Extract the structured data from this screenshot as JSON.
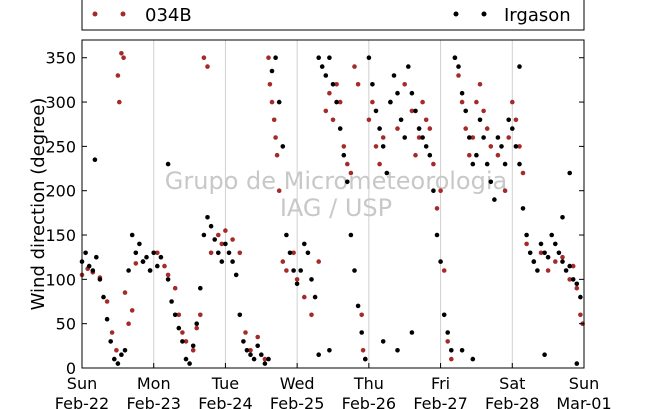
{
  "chart_data": {
    "type": "scatter",
    "title": "",
    "xlabel": "",
    "ylabel": "Wind direction (degree)",
    "ylim": [
      0,
      370
    ],
    "yticks": [
      0,
      50,
      100,
      150,
      200,
      250,
      300,
      350
    ],
    "xlim": [
      "2015-02-22 00:00",
      "2015-03-01 00:00"
    ],
    "xticks": [
      {
        "day": "Sun",
        "date": "Feb-22"
      },
      {
        "day": "Mon",
        "date": "Feb-23"
      },
      {
        "day": "Tue",
        "date": "Feb-24"
      },
      {
        "day": "Wed",
        "date": "Feb-25"
      },
      {
        "day": "Thu",
        "date": "Feb-26"
      },
      {
        "day": "Fri",
        "date": "Feb-27"
      },
      {
        "day": "Sat",
        "date": "Feb-28"
      },
      {
        "day": "Sun",
        "date": "Mar-01"
      }
    ],
    "grid": "vertical",
    "legend_position": "top",
    "watermark": [
      "Grupo de Micrometeorologia",
      "IAG / USP"
    ],
    "series": [
      {
        "name": "034B",
        "color": "#a52a2a",
        "points": [
          [
            0.0,
            105
          ],
          [
            0.08,
            112
          ],
          [
            0.15,
            108
          ],
          [
            0.25,
            102
          ],
          [
            0.35,
            75
          ],
          [
            0.42,
            40
          ],
          [
            0.48,
            20
          ],
          [
            0.5,
            330
          ],
          [
            0.52,
            300
          ],
          [
            0.55,
            355
          ],
          [
            0.58,
            350
          ],
          [
            0.6,
            85
          ],
          [
            0.65,
            50
          ],
          [
            0.7,
            65
          ],
          [
            0.75,
            118
          ],
          [
            0.85,
            120
          ],
          [
            0.95,
            110
          ],
          [
            1.05,
            130
          ],
          [
            1.15,
            115
          ],
          [
            1.2,
            105
          ],
          [
            1.3,
            90
          ],
          [
            1.35,
            60
          ],
          [
            1.4,
            40
          ],
          [
            1.45,
            30
          ],
          [
            1.55,
            20
          ],
          [
            1.6,
            45
          ],
          [
            1.65,
            60
          ],
          [
            1.7,
            350
          ],
          [
            1.75,
            340
          ],
          [
            1.8,
            130
          ],
          [
            1.9,
            150
          ],
          [
            1.95,
            140
          ],
          [
            2.0,
            155
          ],
          [
            2.1,
            145
          ],
          [
            2.2,
            130
          ],
          [
            2.28,
            40
          ],
          [
            2.35,
            20
          ],
          [
            2.45,
            35
          ],
          [
            2.55,
            10
          ],
          [
            2.6,
            350
          ],
          [
            2.62,
            320
          ],
          [
            2.65,
            300
          ],
          [
            2.68,
            280
          ],
          [
            2.7,
            260
          ],
          [
            2.72,
            240
          ],
          [
            2.75,
            200
          ],
          [
            2.8,
            120
          ],
          [
            2.85,
            110
          ],
          [
            2.95,
            130
          ],
          [
            3.0,
            100
          ],
          [
            3.1,
            80
          ],
          [
            3.2,
            60
          ],
          [
            3.3,
            120
          ],
          [
            3.4,
            290
          ],
          [
            3.45,
            310
          ],
          [
            3.5,
            280
          ],
          [
            3.55,
            320
          ],
          [
            3.6,
            300
          ],
          [
            3.65,
            250
          ],
          [
            3.7,
            230
          ],
          [
            3.75,
            220
          ],
          [
            3.8,
            340
          ],
          [
            3.85,
            320
          ],
          [
            3.9,
            60
          ],
          [
            3.92,
            20
          ],
          [
            3.95,
            10
          ],
          [
            4.0,
            280
          ],
          [
            4.05,
            300
          ],
          [
            4.1,
            250
          ],
          [
            4.15,
            230
          ],
          [
            4.2,
            260
          ],
          [
            4.3,
            300
          ],
          [
            4.4,
            270
          ],
          [
            4.5,
            320
          ],
          [
            4.6,
            290
          ],
          [
            4.65,
            240
          ],
          [
            4.7,
            260
          ],
          [
            4.75,
            300
          ],
          [
            4.8,
            280
          ],
          [
            4.85,
            270
          ],
          [
            4.9,
            230
          ],
          [
            4.95,
            180
          ],
          [
            5.0,
            200
          ],
          [
            5.05,
            110
          ],
          [
            5.1,
            30
          ],
          [
            5.15,
            10
          ],
          [
            5.2,
            350
          ],
          [
            5.25,
            330
          ],
          [
            5.3,
            300
          ],
          [
            5.35,
            270
          ],
          [
            5.4,
            240
          ],
          [
            5.45,
            260
          ],
          [
            5.5,
            300
          ],
          [
            5.55,
            320
          ],
          [
            5.6,
            290
          ],
          [
            5.65,
            270
          ],
          [
            5.7,
            250
          ],
          [
            5.8,
            240
          ],
          [
            5.9,
            200
          ],
          [
            5.95,
            260
          ],
          [
            6.0,
            300
          ],
          [
            6.05,
            280
          ],
          [
            6.1,
            250
          ],
          [
            6.15,
            220
          ],
          [
            6.2,
            140
          ],
          [
            6.3,
            120
          ],
          [
            6.4,
            130
          ],
          [
            6.5,
            110
          ],
          [
            6.6,
            120
          ],
          [
            6.7,
            125
          ],
          [
            6.8,
            100
          ],
          [
            6.85,
            115
          ],
          [
            6.9,
            90
          ],
          [
            6.95,
            60
          ],
          [
            6.98,
            50
          ]
        ]
      },
      {
        "name": "Irgason",
        "color": "#000000",
        "points": [
          [
            0.0,
            120
          ],
          [
            0.05,
            130
          ],
          [
            0.1,
            115
          ],
          [
            0.15,
            110
          ],
          [
            0.2,
            125
          ],
          [
            0.25,
            100
          ],
          [
            0.3,
            80
          ],
          [
            0.35,
            55
          ],
          [
            0.4,
            30
          ],
          [
            0.45,
            10
          ],
          [
            0.5,
            5
          ],
          [
            0.55,
            15
          ],
          [
            0.6,
            20
          ],
          [
            0.65,
            110
          ],
          [
            0.7,
            150
          ],
          [
            0.75,
            130
          ],
          [
            0.8,
            140
          ],
          [
            0.85,
            120
          ],
          [
            0.9,
            125
          ],
          [
            0.95,
            110
          ],
          [
            0.18,
            235
          ],
          [
            1.0,
            130
          ],
          [
            1.05,
            115
          ],
          [
            1.1,
            125
          ],
          [
            1.2,
            100
          ],
          [
            1.25,
            75
          ],
          [
            1.3,
            60
          ],
          [
            1.35,
            45
          ],
          [
            1.4,
            30
          ],
          [
            1.45,
            10
          ],
          [
            1.5,
            5
          ],
          [
            1.55,
            25
          ],
          [
            1.6,
            50
          ],
          [
            1.65,
            90
          ],
          [
            1.7,
            150
          ],
          [
            1.75,
            170
          ],
          [
            1.8,
            160
          ],
          [
            1.85,
            145
          ],
          [
            1.9,
            130
          ],
          [
            1.95,
            120
          ],
          [
            1.2,
            230
          ],
          [
            2.0,
            140
          ],
          [
            2.05,
            130
          ],
          [
            2.1,
            120
          ],
          [
            2.15,
            105
          ],
          [
            2.2,
            60
          ],
          [
            2.25,
            30
          ],
          [
            2.3,
            20
          ],
          [
            2.35,
            15
          ],
          [
            2.4,
            10
          ],
          [
            2.45,
            25
          ],
          [
            2.5,
            15
          ],
          [
            2.55,
            5
          ],
          [
            2.6,
            10
          ],
          [
            2.65,
            335
          ],
          [
            2.7,
            350
          ],
          [
            2.75,
            300
          ],
          [
            2.8,
            250
          ],
          [
            2.85,
            150
          ],
          [
            2.9,
            130
          ],
          [
            2.95,
            110
          ],
          [
            3.0,
            95
          ],
          [
            3.05,
            110
          ],
          [
            3.1,
            140
          ],
          [
            3.15,
            130
          ],
          [
            3.2,
            100
          ],
          [
            3.25,
            80
          ],
          [
            3.3,
            350
          ],
          [
            3.35,
            340
          ],
          [
            3.4,
            330
          ],
          [
            3.45,
            350
          ],
          [
            3.5,
            320
          ],
          [
            3.55,
            300
          ],
          [
            3.6,
            270
          ],
          [
            3.65,
            240
          ],
          [
            3.7,
            210
          ],
          [
            3.75,
            150
          ],
          [
            3.8,
            110
          ],
          [
            3.85,
            70
          ],
          [
            3.9,
            40
          ],
          [
            3.95,
            10
          ],
          [
            3.3,
            15
          ],
          [
            3.45,
            20
          ],
          [
            4.0,
            350
          ],
          [
            4.05,
            320
          ],
          [
            4.1,
            290
          ],
          [
            4.15,
            270
          ],
          [
            4.2,
            250
          ],
          [
            4.25,
            220
          ],
          [
            4.3,
            300
          ],
          [
            4.35,
            330
          ],
          [
            4.4,
            310
          ],
          [
            4.45,
            280
          ],
          [
            4.5,
            260
          ],
          [
            4.55,
            340
          ],
          [
            4.6,
            310
          ],
          [
            4.65,
            290
          ],
          [
            4.7,
            270
          ],
          [
            4.75,
            260
          ],
          [
            4.8,
            250
          ],
          [
            4.85,
            240
          ],
          [
            4.9,
            200
          ],
          [
            4.95,
            150
          ],
          [
            4.2,
            30
          ],
          [
            4.4,
            20
          ],
          [
            4.6,
            40
          ],
          [
            5.0,
            120
          ],
          [
            5.05,
            60
          ],
          [
            5.1,
            40
          ],
          [
            5.15,
            20
          ],
          [
            5.2,
            350
          ],
          [
            5.25,
            340
          ],
          [
            5.3,
            310
          ],
          [
            5.35,
            290
          ],
          [
            5.4,
            260
          ],
          [
            5.45,
            230
          ],
          [
            5.5,
            240
          ],
          [
            5.55,
            280
          ],
          [
            5.6,
            260
          ],
          [
            5.65,
            230
          ],
          [
            5.7,
            210
          ],
          [
            5.75,
            190
          ],
          [
            5.8,
            260
          ],
          [
            5.85,
            250
          ],
          [
            5.9,
            230
          ],
          [
            5.95,
            280
          ],
          [
            5.3,
            20
          ],
          [
            5.45,
            10
          ],
          [
            6.0,
            270
          ],
          [
            6.05,
            250
          ],
          [
            6.1,
            230
          ],
          [
            6.15,
            180
          ],
          [
            6.2,
            150
          ],
          [
            6.25,
            130
          ],
          [
            6.3,
            120
          ],
          [
            6.35,
            110
          ],
          [
            6.4,
            140
          ],
          [
            6.45,
            130
          ],
          [
            6.5,
            125
          ],
          [
            6.55,
            150
          ],
          [
            6.6,
            140
          ],
          [
            6.65,
            130
          ],
          [
            6.7,
            120
          ],
          [
            6.75,
            110
          ],
          [
            6.8,
            115
          ],
          [
            6.85,
            100
          ],
          [
            6.9,
            95
          ],
          [
            6.95,
            80
          ],
          [
            6.1,
            340
          ],
          [
            6.45,
            15
          ],
          [
            6.7,
            170
          ],
          [
            6.8,
            220
          ],
          [
            6.9,
            5
          ]
        ]
      }
    ]
  }
}
